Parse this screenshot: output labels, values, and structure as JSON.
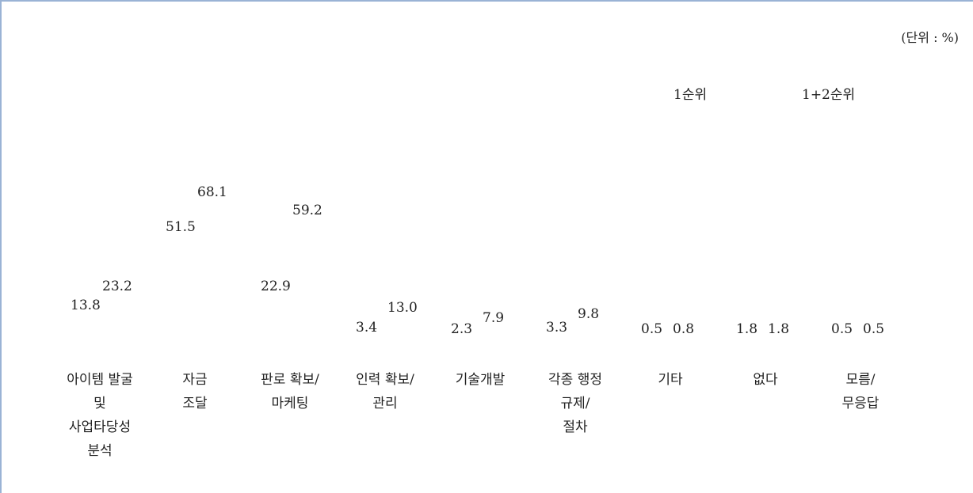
{
  "chart_data": {
    "type": "bar",
    "unit": "(단위 : %)",
    "categories": [
      "아이템 발굴\n및\n사업타당성\n분석",
      "자금\n조달",
      "판로 확보/\n마케팅",
      "인력 확보/\n관리",
      "기술개발",
      "각종 행정\n규제/\n절차",
      "기타",
      "없다",
      "모름/\n무응답"
    ],
    "series": [
      {
        "name": "1순위",
        "values": [
          13.8,
          51.5,
          22.9,
          3.4,
          2.3,
          3.3,
          0.5,
          1.8,
          0.5
        ],
        "labels": [
          "13.8",
          "51.5",
          "22.9",
          "3.4",
          "2.3",
          "3.3",
          "0.5",
          "1.8",
          "0.5"
        ]
      },
      {
        "name": "1+2순위",
        "values": [
          23.2,
          68.1,
          59.2,
          13.0,
          7.9,
          9.8,
          0.8,
          1.8,
          0.5
        ],
        "labels": [
          "23.2",
          "68.1",
          "59.2",
          "13.0",
          "7.9",
          "9.8",
          "0.8",
          "1.8",
          "0.5"
        ]
      }
    ],
    "ylim": [
      0,
      100
    ],
    "legend": "top-right",
    "grid": false
  }
}
